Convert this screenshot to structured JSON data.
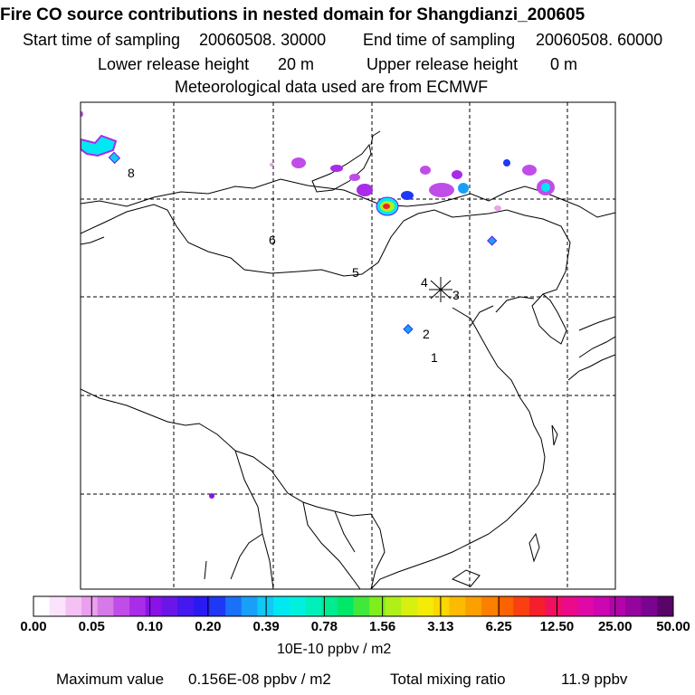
{
  "header": {
    "title": "Fire CO source contributions in nested domain for Shangdianzi_200605",
    "start_label": "Start time of sampling",
    "start_value": "20060508. 30000",
    "end_label": "End time of sampling",
    "end_value": "20060508. 60000",
    "lower_label": "Lower release height",
    "lower_value": "20 m",
    "upper_label": "Upper release height",
    "upper_value": "0 m",
    "met": "Meteorological data used are from ECMWF"
  },
  "map": {
    "point_labels": [
      "8",
      "6",
      "5",
      "4",
      "3",
      "2",
      "1"
    ],
    "receptor_marker": "star-cross"
  },
  "colorbar": {
    "labels": [
      "0.00",
      "0.05",
      "0.10",
      "0.20",
      "0.39",
      "0.78",
      "1.56",
      "3.13",
      "6.25",
      "12.50",
      "25.00",
      "50.00"
    ],
    "colors": [
      "#ffffff",
      "#fbe3fb",
      "#f3c2f3",
      "#e9a0ee",
      "#d57ae6",
      "#c04de8",
      "#a82ce8",
      "#8a12e6",
      "#6a16e8",
      "#4418ee",
      "#2a1af2",
      "#1e38f6",
      "#1a70f8",
      "#18a0f8",
      "#10c8f6",
      "#00e8f2",
      "#00f0e0",
      "#00f0bc",
      "#00ec90",
      "#00e868",
      "#40e83c",
      "#80ee1c",
      "#b0f018",
      "#d8f010",
      "#f4ec06",
      "#fcd600",
      "#fcba00",
      "#fca000",
      "#fc8000",
      "#fc6200",
      "#fa4010",
      "#f41e2c",
      "#f01060",
      "#ea0a8a",
      "#e008a6",
      "#cc06b0",
      "#b204aa",
      "#96049e",
      "#7a0490",
      "#580468"
    ],
    "unit": "10E-10 ppbv / m2"
  },
  "footer": {
    "max_label": "Maximum value",
    "max_value": "0.156E-08 ppbv / m2",
    "total_label": "Total mixing ratio",
    "total_value": "11.9 ppbv"
  }
}
